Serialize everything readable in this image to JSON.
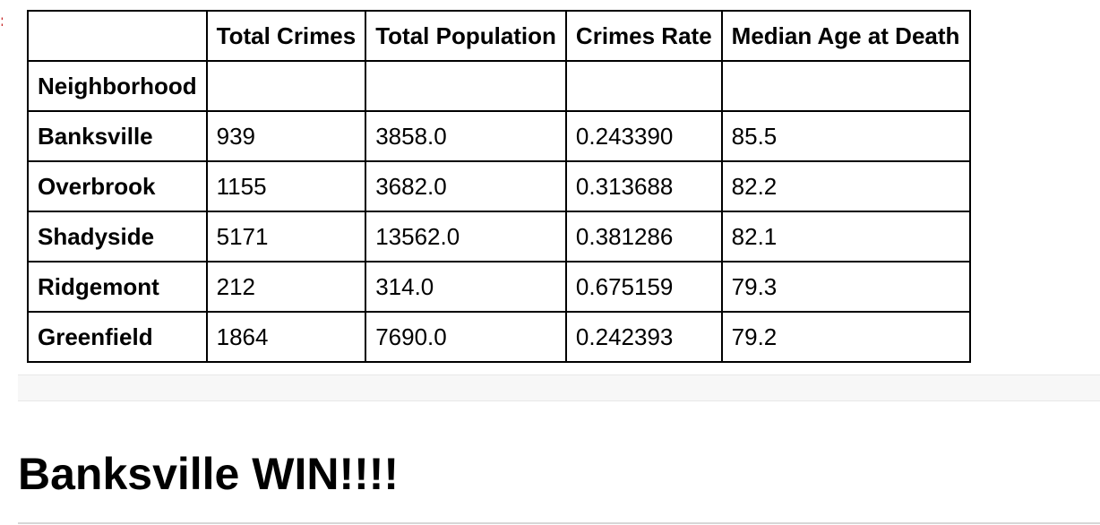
{
  "table": {
    "columns": [
      "Total Crimes",
      "Total Population",
      "Crimes Rate",
      "Median Age at Death"
    ],
    "index_name": "Neighborhood",
    "rows": [
      {
        "name": "Banksville",
        "cells": [
          "939",
          "3858.0",
          "0.243390",
          "85.5"
        ]
      },
      {
        "name": "Overbrook",
        "cells": [
          "1155",
          "3682.0",
          "0.313688",
          "82.2"
        ]
      },
      {
        "name": "Shadyside",
        "cells": [
          "5171",
          "13562.0",
          "0.381286",
          "82.1"
        ]
      },
      {
        "name": "Ridgemont",
        "cells": [
          "212",
          "314.0",
          "0.675159",
          "79.3"
        ]
      },
      {
        "name": "Greenfield",
        "cells": [
          "1864",
          "7690.0",
          "0.242393",
          "79.2"
        ]
      }
    ]
  },
  "heading": "Banksville WIN!!!!",
  "colors": {
    "prompt_marker": "#c62828",
    "footer_bg": "#f7f7f7",
    "rule": "#d6d6d6"
  }
}
